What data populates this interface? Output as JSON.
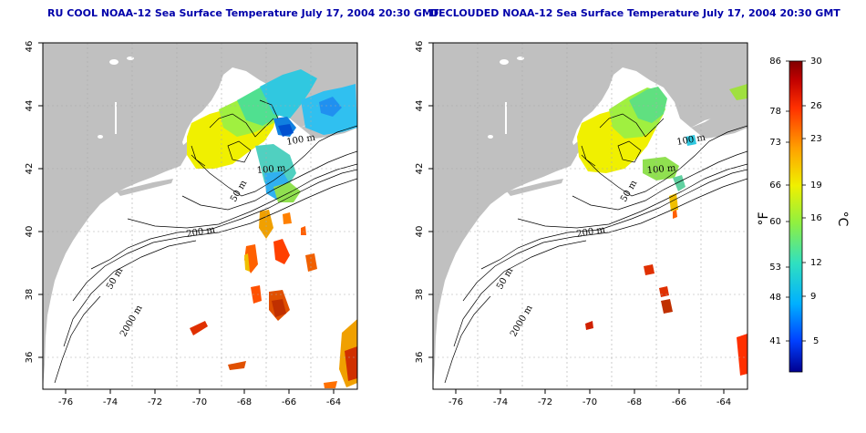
{
  "titles": {
    "left": "RU COOL NOAA-12 Sea Surface Temperature July 17, 2004 20:30 GMT",
    "right": "DECLOUDED NOAA-12 Sea Surface Temperature July 17, 2004 20:30 GMT"
  },
  "map": {
    "lon_range": [
      -77,
      -63
    ],
    "lat_range": [
      35,
      46
    ],
    "lon_ticks": [
      "-76",
      "-74",
      "-72",
      "-70",
      "-68",
      "-66",
      "-64"
    ],
    "lat_ticks": [
      "36",
      "38",
      "40",
      "42",
      "44",
      "46"
    ],
    "land_color": "#c0c0c0",
    "contour_labels": {
      "m100a": "100 m",
      "m100b": "100 m",
      "m50a": "50 m",
      "m200": "200 m",
      "m50b": "50 m",
      "m2000": "2000 m"
    }
  },
  "colorbar": {
    "fahrenheit_ticks": [
      "86",
      "78",
      "73",
      "66",
      "60",
      "53",
      "48",
      "41"
    ],
    "celsius_ticks": [
      "30",
      "26",
      "23",
      "19",
      "16",
      "12",
      "9",
      "5"
    ],
    "unit_f": "°F",
    "unit_c": "°C",
    "colors": [
      "#000090",
      "#0040ff",
      "#00b0ff",
      "#30e0c0",
      "#90f040",
      "#f0f000",
      "#ffa000",
      "#ff3000",
      "#c00000",
      "#800000"
    ]
  }
}
